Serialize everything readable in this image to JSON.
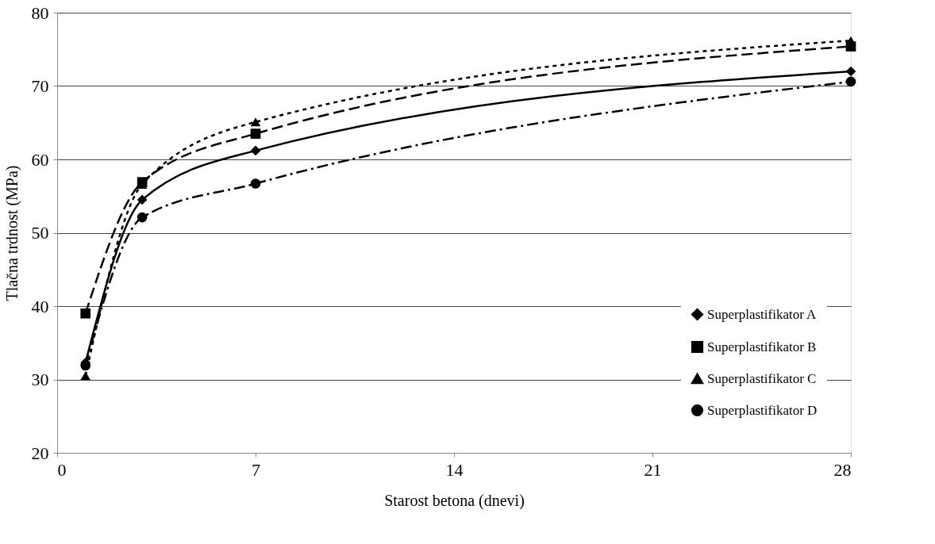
{
  "chart_data": {
    "type": "line",
    "xlabel": "Starost betona (dnevi)",
    "ylabel": "Tlačna trdnost (MPa)",
    "xlim": [
      0,
      28
    ],
    "xticks": [
      0,
      7,
      14,
      21,
      28
    ],
    "ylim": [
      20,
      80
    ],
    "yticks": [
      20,
      30,
      40,
      50,
      60,
      70,
      80
    ],
    "grid": "y",
    "legend": "bottom right",
    "series": [
      {
        "name": "Superplastifikator A",
        "color": "#000000",
        "marker": "diamond",
        "line_style": "solid",
        "x": [
          1,
          3,
          7,
          28
        ],
        "values": [
          32.3,
          54.5,
          61.2,
          72.0
        ]
      },
      {
        "name": "Superplastifikator B",
        "color": "#000000",
        "marker": "square",
        "line_style": "dashed",
        "x": [
          1,
          3,
          7,
          28
        ],
        "values": [
          39.0,
          56.9,
          63.5,
          75.4
        ]
      },
      {
        "name": "Superplastifikator C",
        "color": "#000000",
        "marker": "triangle",
        "line_style": "dotted",
        "x": [
          1,
          3,
          7,
          28
        ],
        "values": [
          30.5,
          56.6,
          65.1,
          76.2
        ]
      },
      {
        "name": "Superplastifikator D",
        "color": "#000000",
        "marker": "circle",
        "line_style": "dashdot",
        "x": [
          1,
          3,
          7,
          28
        ],
        "values": [
          31.9,
          52.1,
          56.7,
          70.6
        ]
      }
    ]
  }
}
